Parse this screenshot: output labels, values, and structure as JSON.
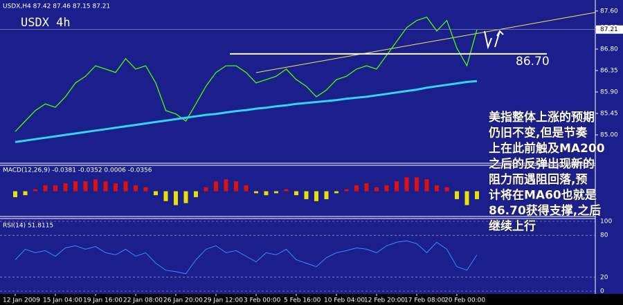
{
  "chart_data": [
    {
      "type": "line",
      "title": "USDX 4h",
      "subtitle": "USDX,H4  87.42 87.46 87.15 87.21",
      "categories": [
        "12 Jan 2009",
        null,
        null,
        null,
        "15 Jan 04:00",
        null,
        null,
        null,
        "19 Jan 16:00",
        null,
        null,
        null,
        "22 Jan 08:00",
        null,
        null,
        null,
        "26 Jan 20:00",
        null,
        null,
        null,
        "29 Jan 12:00",
        null,
        null,
        null,
        "3 Feb 00:00",
        null,
        null,
        null,
        "5 Feb 16:00",
        null,
        null,
        null,
        "10 Feb 04:00",
        null,
        null,
        null,
        "12 Feb 20:00",
        null,
        null,
        null,
        "17 Feb 08:00",
        null,
        null,
        null,
        "20 Feb 00:00",
        null,
        null
      ],
      "series": [
        {
          "color": "#4cff00",
          "values": [
            85.07,
            85.29,
            85.51,
            85.65,
            85.58,
            85.8,
            86.09,
            86.23,
            86.45,
            86.38,
            86.31,
            86.6,
            86.38,
            86.45,
            86.09,
            85.51,
            85.44,
            85.29,
            85.65,
            86.02,
            86.31,
            86.45,
            86.45,
            86.31,
            86.09,
            86.16,
            86.23,
            86.38,
            86.16,
            86.02,
            85.8,
            85.94,
            86.16,
            86.23,
            86.38,
            86.45,
            86.38,
            86.67,
            86.96,
            87.25,
            87.4,
            87.47,
            87.18,
            87.4,
            86.82,
            86.45,
            87.21
          ]
        },
        {
          "color": "#33d6f0",
          "values": [
            84.85,
            84.88,
            84.91,
            84.94,
            84.97,
            85.0,
            85.03,
            85.06,
            85.09,
            85.12,
            85.15,
            85.18,
            85.21,
            85.24,
            85.27,
            85.3,
            85.33,
            85.36,
            85.39,
            85.42,
            85.44,
            85.47,
            85.5,
            85.52,
            85.55,
            85.57,
            85.6,
            85.62,
            85.65,
            85.67,
            85.69,
            85.71,
            85.73,
            85.76,
            85.78,
            85.8,
            85.83,
            85.86,
            85.89,
            85.92,
            85.95,
            85.99,
            86.02,
            86.05,
            86.08,
            86.11,
            86.13
          ]
        }
      ],
      "ylim": [
        84.42,
        87.83
      ],
      "yticks": [
        {
          "value": 85.0,
          "label": "85.00"
        },
        85.45,
        {
          "value": 85.9,
          "label": "85.90"
        },
        86.35,
        {
          "value": 86.8,
          "label": "86.80"
        },
        87.25,
        {
          "value": 87.6,
          "label": "87.60"
        }
      ],
      "last_price": 87.21,
      "support": {
        "value": 86.7,
        "label": "86.70"
      },
      "note_lines": [
        "美指整体上涨的预期",
        "仍旧不变,但是节奏",
        "上在此前触及MA200",
        "之后的反弹出现新的",
        "阻力而遇阻回落,预",
        "计将在MA60也就是",
        "86.70获得支撑,之后",
        "继续上行"
      ]
    },
    {
      "type": "bar",
      "title": "MACD(12,26,9) -0.0381 -0.0352 0.0006 -0.0356",
      "values": [
        -0.03,
        -0.02,
        0.01,
        0.03,
        0.03,
        0.04,
        0.05,
        0.05,
        0.06,
        0.05,
        0.04,
        0.05,
        0.03,
        0.02,
        -0.02,
        -0.05,
        -0.07,
        -0.06,
        -0.03,
        0.02,
        0.05,
        0.06,
        0.05,
        0.03,
        -0.01,
        -0.02,
        -0.01,
        0.01,
        -0.02,
        -0.04,
        -0.05,
        -0.04,
        -0.01,
        0.01,
        0.03,
        0.04,
        0.02,
        0.03,
        0.05,
        0.07,
        0.07,
        0.06,
        0.03,
        0.02,
        -0.04,
        -0.07,
        -0.04
      ],
      "colors": {
        "up": "#e01010",
        "down": "#e8e000"
      },
      "ylim": [
        -0.11,
        0.11
      ]
    },
    {
      "type": "line",
      "title": "RSI(14) 51.8115",
      "values": [
        45,
        60,
        55,
        58,
        50,
        62,
        65,
        60,
        64,
        55,
        52,
        60,
        50,
        55,
        40,
        30,
        28,
        25,
        45,
        60,
        65,
        55,
        58,
        50,
        42,
        55,
        52,
        60,
        45,
        40,
        35,
        48,
        55,
        58,
        62,
        60,
        55,
        65,
        70,
        72,
        68,
        55,
        70,
        60,
        35,
        30,
        52
      ],
      "color": "#3a8cff",
      "ylim": [
        0,
        100
      ],
      "yticks": [
        0,
        20,
        80,
        100
      ]
    }
  ]
}
